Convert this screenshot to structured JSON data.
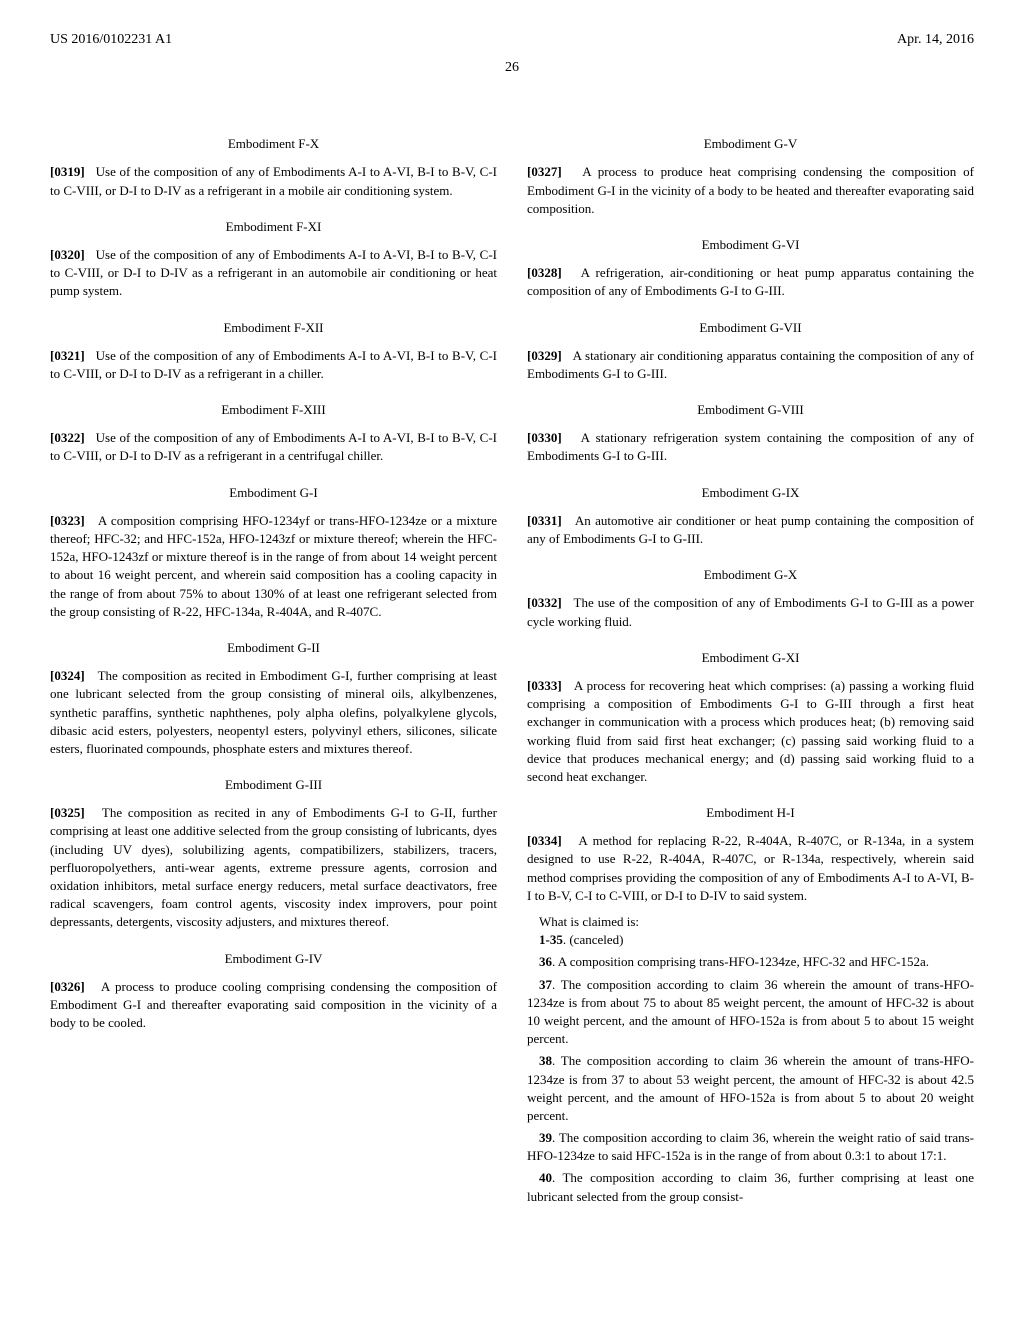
{
  "header": {
    "patent_number": "US 2016/0102231 A1",
    "date": "Apr. 14, 2016"
  },
  "page_number": "26",
  "left_column": {
    "sections": [
      {
        "title": "Embodiment F-X",
        "para_num": "[0319]",
        "text": "Use of the composition of any of Embodiments A-I to A-VI, B-I to B-V, C-I to C-VIII, or D-I to D-IV as a refrigerant in a mobile air conditioning system."
      },
      {
        "title": "Embodiment F-XI",
        "para_num": "[0320]",
        "text": "Use of the composition of any of Embodiments A-I to A-VI, B-I to B-V, C-I to C-VIII, or D-I to D-IV as a refrigerant in an automobile air conditioning or heat pump system."
      },
      {
        "title": "Embodiment F-XII",
        "para_num": "[0321]",
        "text": "Use of the composition of any of Embodiments A-I to A-VI, B-I to B-V, C-I to C-VIII, or D-I to D-IV as a refrigerant in a chiller."
      },
      {
        "title": "Embodiment F-XIII",
        "para_num": "[0322]",
        "text": "Use of the composition of any of Embodiments A-I to A-VI, B-I to B-V, C-I to C-VIII, or D-I to D-IV as a refrigerant in a centrifugal chiller."
      },
      {
        "title": "Embodiment G-I",
        "para_num": "[0323]",
        "text": "A composition comprising HFO-1234yf or trans-HFO-1234ze or a mixture thereof; HFC-32; and HFC-152a, HFO-1243zf or mixture thereof; wherein the HFC-152a, HFO-1243zf or mixture thereof is in the range of from about 14 weight percent to about 16 weight percent, and wherein said composition has a cooling capacity in the range of from about 75% to about 130% of at least one refrigerant selected from the group consisting of R-22, HFC-134a, R-404A, and R-407C."
      },
      {
        "title": "Embodiment G-II",
        "para_num": "[0324]",
        "text": "The composition as recited in Embodiment G-I, further comprising at least one lubricant selected from the group consisting of mineral oils, alkylbenzenes, synthetic paraffins, synthetic naphthenes, poly alpha olefins, polyalkylene glycols, dibasic acid esters, polyesters, neopentyl esters, polyvinyl ethers, silicones, silicate esters, fluorinated compounds, phosphate esters and mixtures thereof."
      },
      {
        "title": "Embodiment G-III",
        "para_num": "[0325]",
        "text": "The composition as recited in any of Embodiments G-I to G-II, further comprising at least one additive selected from the group consisting of lubricants, dyes (including UV dyes), solubilizing agents, compatibilizers, stabilizers, tracers, perfluoropolyethers, anti-wear agents, extreme pressure agents, corrosion and oxidation inhibitors, metal surface energy reducers, metal surface deactivators, free radical scavengers, foam control agents, viscosity index improvers, pour point depressants, detergents, viscosity adjusters, and mixtures thereof."
      },
      {
        "title": "Embodiment G-IV",
        "para_num": "[0326]",
        "text": "A process to produce cooling comprising condensing the composition of Embodiment G-I and thereafter evaporating said composition in the vicinity of a body to be cooled."
      }
    ]
  },
  "right_column": {
    "sections": [
      {
        "title": "Embodiment G-V",
        "para_num": "[0327]",
        "text": "A process to produce heat comprising condensing the composition of Embodiment G-I in the vicinity of a body to be heated and thereafter evaporating said composition."
      },
      {
        "title": "Embodiment G-VI",
        "para_num": "[0328]",
        "text": "A refrigeration, air-conditioning or heat pump apparatus containing the composition of any of Embodiments G-I to G-III."
      },
      {
        "title": "Embodiment G-VII",
        "para_num": "[0329]",
        "text": "A stationary air conditioning apparatus containing the composition of any of Embodiments G-I to G-III."
      },
      {
        "title": "Embodiment G-VIII",
        "para_num": "[0330]",
        "text": "A stationary refrigeration system containing the composition of any of Embodiments G-I to G-III."
      },
      {
        "title": "Embodiment G-IX",
        "para_num": "[0331]",
        "text": "An automotive air conditioner or heat pump containing the composition of any of Embodiments G-I to G-III."
      },
      {
        "title": "Embodiment G-X",
        "para_num": "[0332]",
        "text": "The use of the composition of any of Embodiments G-I to G-III as a power cycle working fluid."
      },
      {
        "title": "Embodiment G-XI",
        "para_num": "[0333]",
        "text": "A process for recovering heat which comprises: (a) passing a working fluid comprising a composition of Embodiments G-I to G-III through a first heat exchanger in communication with a process which produces heat; (b) removing said working fluid from said first heat exchanger; (c) passing said working fluid to a device that produces mechanical energy; and (d) passing said working fluid to a second heat exchanger."
      },
      {
        "title": "Embodiment H-I",
        "para_num": "[0334]",
        "text": "A method for replacing R-22, R-404A, R-407C, or R-134a, in a system designed to use R-22, R-404A, R-407C, or R-134a, respectively, wherein said method comprises providing the composition of any of Embodiments A-I to A-VI, B-I to B-V, C-I to C-VIII, or D-I to D-IV to said system."
      }
    ],
    "claims_intro": "What is claimed is:",
    "claims": [
      {
        "num": "1-35",
        "text": ". (canceled)"
      },
      {
        "num": "36",
        "text": ". A composition comprising trans-HFO-1234ze, HFC-32 and HFC-152a."
      },
      {
        "num": "37",
        "text": ". The composition according to claim 36 wherein the amount of trans-HFO-1234ze is from about 75 to about 85 weight percent, the amount of HFC-32 is about 10 weight percent, and the amount of HFO-152a is from about 5 to about 15 weight percent."
      },
      {
        "num": "38",
        "text": ". The composition according to claim 36 wherein the amount of trans-HFO-1234ze is from 37 to about 53 weight percent, the amount of HFC-32 is about 42.5 weight percent, and the amount of HFO-152a is from about 5 to about 20 weight percent."
      },
      {
        "num": "39",
        "text": ". The composition according to claim 36, wherein the weight ratio of said trans-HFO-1234ze to said HFC-152a is in the range of from about 0.3:1 to about 17:1."
      },
      {
        "num": "40",
        "text": ". The composition according to claim 36, further comprising at least one lubricant selected from the group consist-"
      }
    ]
  }
}
